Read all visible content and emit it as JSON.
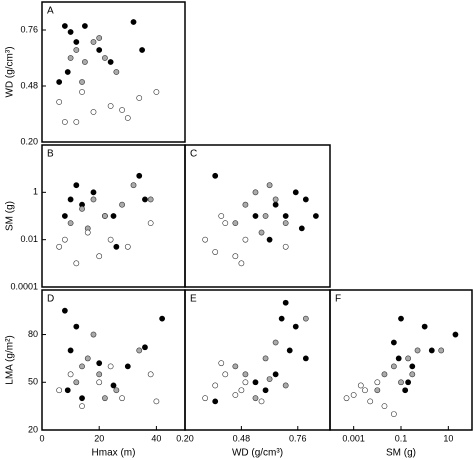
{
  "chart_data": [
    {
      "type": "scatter",
      "panel_label": "A",
      "y_label": "WD (g/cm³)",
      "xlim": [
        0,
        50
      ],
      "ylim": [
        0.2,
        0.9
      ],
      "yticks": [
        {
          "value": 0.2,
          "label": "0.20"
        },
        0.48,
        0.76
      ],
      "series": [
        {
          "color": "#000000",
          "x": [
            8,
            10,
            12,
            15,
            20,
            24,
            32,
            35,
            9,
            6
          ],
          "values": [
            0.78,
            0.75,
            0.7,
            0.78,
            0.66,
            0.6,
            0.8,
            0.66,
            0.55,
            0.5
          ]
        },
        {
          "color": "#aaaaaa",
          "x": [
            12,
            15,
            18,
            22,
            26,
            14,
            10,
            20
          ],
          "values": [
            0.66,
            0.6,
            0.7,
            0.62,
            0.55,
            0.5,
            0.62,
            0.72
          ]
        },
        {
          "color": "#ffffff",
          "x": [
            6,
            8,
            14,
            18,
            24,
            28,
            34,
            40,
            12,
            30
          ],
          "values": [
            0.4,
            0.3,
            0.45,
            0.35,
            0.38,
            0.36,
            0.42,
            0.45,
            0.3,
            0.32
          ]
        }
      ]
    },
    {
      "type": "scatter",
      "panel_label": "B",
      "y_label": "SM (g)",
      "ylog": true,
      "xlim": [
        0,
        50
      ],
      "ylim": [
        0.0001,
        100
      ],
      "yticks": [
        0.0001,
        0.01,
        1
      ],
      "series": [
        {
          "color": "#000000",
          "x": [
            8,
            10,
            14,
            18,
            22,
            26,
            34,
            36,
            12,
            25
          ],
          "values": [
            0.1,
            0.5,
            0.3,
            1,
            0.1,
            0.005,
            5,
            0.5,
            2,
            0.1
          ]
        },
        {
          "color": "#aaaaaa",
          "x": [
            10,
            14,
            18,
            22,
            28,
            32,
            38,
            16
          ],
          "values": [
            0.05,
            0.2,
            0.5,
            0.1,
            0.3,
            2,
            0.5,
            0.03
          ]
        },
        {
          "color": "#ffffff",
          "x": [
            6,
            8,
            12,
            16,
            20,
            24,
            30,
            38
          ],
          "values": [
            0.005,
            0.01,
            0.001,
            0.02,
            0.002,
            0.01,
            0.005,
            0.05
          ]
        }
      ]
    },
    {
      "type": "scatter",
      "panel_label": "C",
      "ylog": true,
      "xlim": [
        0.2,
        0.92
      ],
      "ylim": [
        0.0001,
        100
      ],
      "series": [
        {
          "color": "#000000",
          "x": [
            0.75,
            0.8,
            0.7,
            0.65,
            0.85,
            0.35,
            0.55,
            0.62,
            0.78
          ],
          "values": [
            1,
            0.5,
            0.1,
            0.3,
            0.1,
            5,
            0.1,
            0.01,
            0.03
          ]
        },
        {
          "color": "#aaaaaa",
          "x": [
            0.5,
            0.55,
            0.6,
            0.65,
            0.7,
            0.45,
            0.58,
            0.62
          ],
          "values": [
            0.3,
            1,
            0.1,
            0.5,
            0.05,
            0.05,
            0.02,
            2
          ]
        },
        {
          "color": "#ffffff",
          "x": [
            0.3,
            0.35,
            0.4,
            0.45,
            0.5,
            0.38,
            0.48,
            0.7
          ],
          "values": [
            0.01,
            0.003,
            0.05,
            0.002,
            0.01,
            0.1,
            0.001,
            0.005
          ]
        }
      ]
    },
    {
      "type": "scatter",
      "panel_label": "D",
      "x_label": "Hmax (m)",
      "y_label": "LMA (g/m²)",
      "xlim": [
        0,
        50
      ],
      "ylim": [
        20,
        108
      ],
      "xticks": [
        0,
        20,
        40
      ],
      "yticks": [
        20,
        50,
        80
      ],
      "series": [
        {
          "color": "#000000",
          "x": [
            8,
            10,
            14,
            20,
            30,
            42,
            25,
            9,
            12,
            36
          ],
          "values": [
            95,
            70,
            40,
            62,
            60,
            90,
            48,
            45,
            85,
            72
          ]
        },
        {
          "color": "#aaaaaa",
          "x": [
            12,
            16,
            20,
            26,
            34,
            18,
            22,
            14
          ],
          "values": [
            50,
            65,
            55,
            45,
            70,
            80,
            40,
            60
          ]
        },
        {
          "color": "#ffffff",
          "x": [
            6,
            10,
            14,
            20,
            28,
            38,
            24,
            40
          ],
          "values": [
            45,
            55,
            35,
            50,
            40,
            55,
            60,
            38
          ]
        }
      ]
    },
    {
      "type": "scatter",
      "panel_label": "E",
      "x_label": "WD (g/cm³)",
      "xlim": [
        0.2,
        0.92
      ],
      "ylim": [
        20,
        108
      ],
      "xticks": [
        {
          "value": 0.2,
          "label": "0.20"
        },
        0.48,
        0.76
      ],
      "series": [
        {
          "color": "#000000",
          "x": [
            0.7,
            0.75,
            0.8,
            0.65,
            0.55,
            0.6,
            0.35,
            0.72,
            0.68
          ],
          "values": [
            100,
            85,
            65,
            55,
            50,
            45,
            38,
            70,
            90
          ]
        },
        {
          "color": "#aaaaaa",
          "x": [
            0.5,
            0.6,
            0.65,
            0.7,
            0.55,
            0.8,
            0.45,
            0.62
          ],
          "values": [
            55,
            65,
            75,
            48,
            40,
            90,
            60,
            52
          ]
        },
        {
          "color": "#ffffff",
          "x": [
            0.3,
            0.35,
            0.4,
            0.45,
            0.5,
            0.38,
            0.48,
            0.58
          ],
          "values": [
            40,
            48,
            55,
            42,
            50,
            62,
            45,
            38
          ]
        }
      ]
    },
    {
      "type": "scatter",
      "panel_label": "F",
      "x_label": "SM (g)",
      "xlog": true,
      "xlim": [
        0.0001,
        100
      ],
      "ylim": [
        20,
        108
      ],
      "xticks": [
        0.001,
        0.1,
        10
      ],
      "series": [
        {
          "color": "#000000",
          "x": [
            0.1,
            0.05,
            0.3,
            1,
            2,
            0.2,
            0.15,
            20,
            0.08
          ],
          "values": [
            90,
            75,
            60,
            85,
            70,
            50,
            45,
            80,
            65
          ]
        },
        {
          "color": "#aaaaaa",
          "x": [
            0.02,
            0.05,
            0.1,
            0.2,
            0.5,
            5,
            0.01,
            0.3
          ],
          "values": [
            55,
            60,
            50,
            65,
            70,
            70,
            45,
            55
          ]
        },
        {
          "color": "#ffffff",
          "x": [
            0.0005,
            0.001,
            0.003,
            0.005,
            0.01,
            0.02,
            0.05,
            0.002
          ],
          "values": [
            40,
            42,
            45,
            38,
            50,
            35,
            30,
            48
          ]
        }
      ]
    }
  ]
}
